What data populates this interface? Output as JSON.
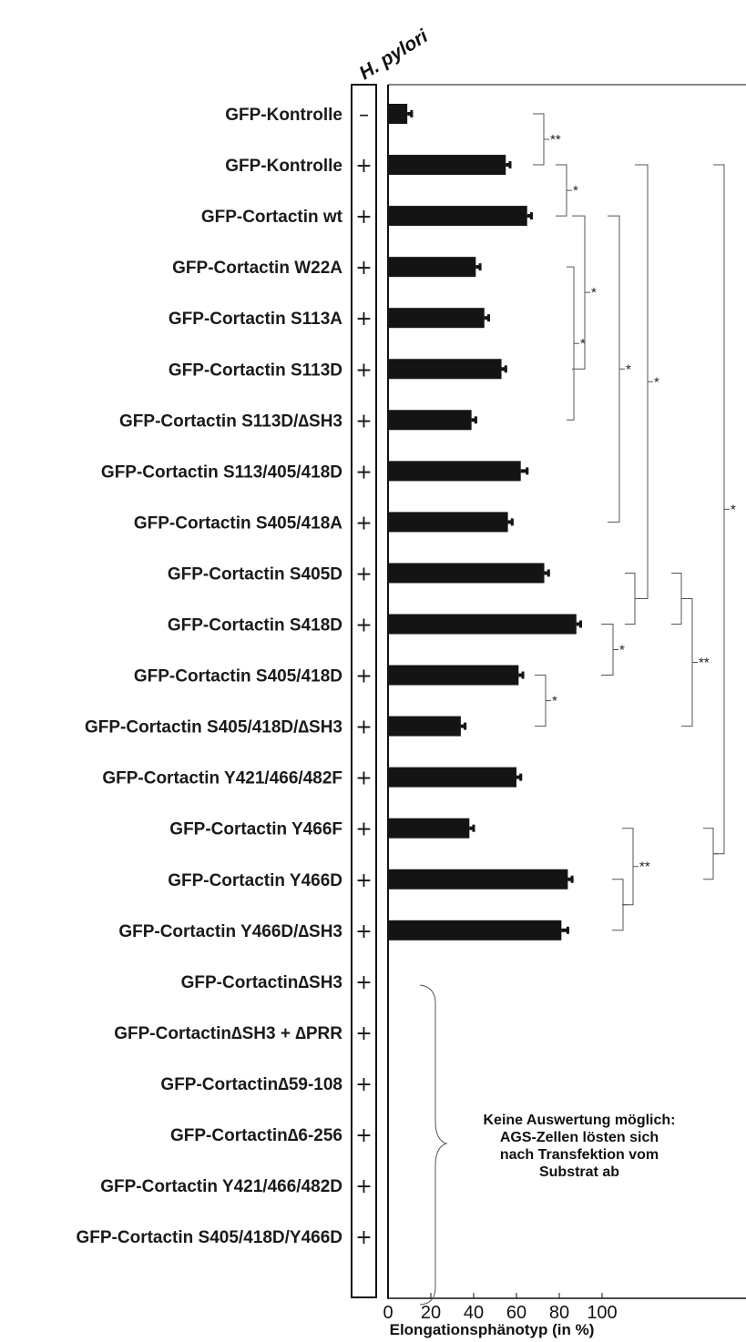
{
  "chart_data": {
    "type": "bar",
    "orientation": "horizontal",
    "header": "H. pylori",
    "xlabel": "Elongationsphänotyp (in %)",
    "xlim": [
      0,
      100
    ],
    "xticks": [
      "0",
      "20",
      "40",
      "60",
      "80",
      "100"
    ],
    "categories": [
      "GFP-Kontrolle",
      "GFP-Kontrolle",
      "GFP-Cortactin wt",
      "GFP-Cortactin W22A",
      "GFP-Cortactin S113A",
      "GFP-Cortactin S113D",
      "GFP-Cortactin S113D/∆SH3",
      "GFP-Cortactin S113/405/418D",
      "GFP-Cortactin S405/418A",
      "GFP-Cortactin S405D",
      "GFP-Cortactin S418D",
      "GFP-Cortactin S405/418D",
      "GFP-Cortactin S405/418D/∆SH3",
      "GFP-Cortactin Y421/466/482F",
      "GFP-Cortactin Y466F",
      "GFP-Cortactin Y466D",
      "GFP-Cortactin Y466D/∆SH3",
      "GFP-Cortactin∆SH3",
      "GFP-Cortactin∆SH3 + ∆PRR",
      "GFP-Cortactin∆59-108",
      "GFP-Cortactin∆6-256",
      "GFP-Cortactin Y421/466/482D",
      "GFP-Cortactin S405/418D/Y466D"
    ],
    "infection": [
      "–",
      "+",
      "+",
      "+",
      "+",
      "+",
      "+",
      "+",
      "+",
      "+",
      "+",
      "+",
      "+",
      "+",
      "+",
      "+",
      "+",
      "+",
      "+",
      "+",
      "+",
      "+",
      "+"
    ],
    "values": [
      9,
      55,
      65,
      41,
      45,
      53,
      39,
      62,
      56,
      73,
      88,
      61,
      34,
      60,
      38,
      84,
      81,
      null,
      null,
      null,
      null,
      null,
      null
    ],
    "errors": [
      2,
      2,
      2,
      2,
      2,
      2,
      2,
      3,
      2,
      2,
      2,
      2,
      2,
      2,
      2,
      2,
      3,
      null,
      null,
      null,
      null,
      null,
      null
    ],
    "comparisons": [
      {
        "a": 0,
        "b": 1,
        "label": "**"
      },
      {
        "a": 1,
        "b": 2,
        "label": "*"
      },
      {
        "a": 3,
        "b": 6,
        "label": "*"
      },
      {
        "a": 2,
        "b": 5,
        "label": "*"
      },
      {
        "a": 2,
        "b": 8,
        "label": "*"
      },
      {
        "a": 1,
        "b": 9.5,
        "label": "*"
      },
      {
        "a": 1,
        "b": 14.5,
        "label": "*"
      },
      {
        "a": 10,
        "b": 11,
        "label": "*"
      },
      {
        "a": 11,
        "b": 12,
        "label": "*"
      },
      {
        "a": 9.5,
        "b": 12,
        "label": "**"
      },
      {
        "a": 15,
        "b": 16,
        "label": ""
      },
      {
        "a": 14,
        "b": 15.5,
        "label": "**"
      },
      {
        "a": 9,
        "b": 10,
        "label": ""
      },
      {
        "a": 9,
        "b": 10,
        "label": ""
      },
      {
        "a": 14,
        "b": 15,
        "label": ""
      }
    ],
    "annotation": [
      "Keine Auswertung möglich:",
      "AGS-Zellen lösten sich",
      "nach Transfektion vom",
      "Substrat ab"
    ],
    "grid": false
  }
}
